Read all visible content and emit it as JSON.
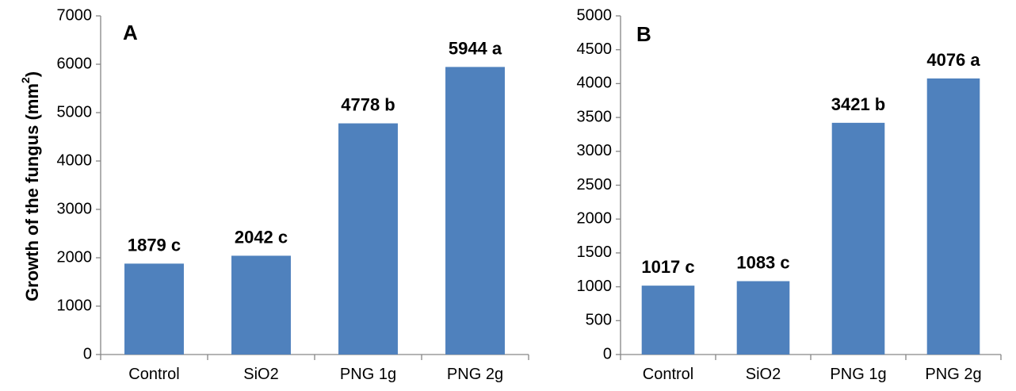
{
  "figure": {
    "ylabel": "Growth of the fungus (mm",
    "ylabel_superscript": "2",
    "ylabel_close": ")"
  },
  "chart_data": [
    {
      "type": "bar",
      "panel": "A",
      "categories": [
        "Control",
        "SiO2",
        "PNG 1g",
        "PNG 2g"
      ],
      "values": [
        1879,
        2042,
        4778,
        5944
      ],
      "data_labels": [
        "1879 c",
        "2042 c",
        "4778 b",
        "5944 a"
      ],
      "ylim": [
        0,
        7000
      ],
      "yticks": [
        0,
        1000,
        2000,
        3000,
        4000,
        5000,
        6000,
        7000
      ],
      "ylabel": "Growth of the fungus (mm²)",
      "color": "#4f81bd",
      "grid": false,
      "legend": "none"
    },
    {
      "type": "bar",
      "panel": "B",
      "categories": [
        "Control",
        "SiO2",
        "PNG 1g",
        "PNG 2g"
      ],
      "values": [
        1017,
        1083,
        3421,
        4076
      ],
      "data_labels": [
        "1017 c",
        "1083 c",
        "3421 b",
        "4076 a"
      ],
      "ylim": [
        0,
        5000
      ],
      "yticks": [
        0,
        500,
        1000,
        1500,
        2000,
        2500,
        3000,
        3500,
        4000,
        4500,
        5000
      ],
      "color": "#4f81bd",
      "grid": false,
      "legend": "none"
    }
  ]
}
